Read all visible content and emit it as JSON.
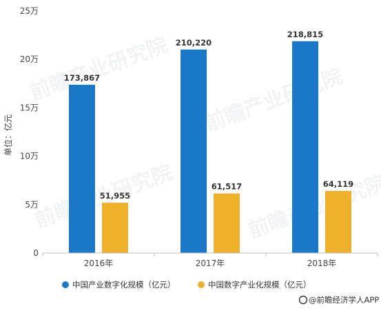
{
  "chart_data": {
    "type": "bar",
    "categories": [
      "2016年",
      "2017年",
      "2018年"
    ],
    "series": [
      {
        "name": "中国产业数字化规模（亿元）",
        "values": [
          173867,
          210220,
          218815
        ],
        "labels": [
          "173,867",
          "210,220",
          "218,815"
        ],
        "color": "#1a78c9"
      },
      {
        "name": "中国数字产业化规模（亿元）",
        "values": [
          51955,
          61517,
          64119
        ],
        "labels": [
          "51,955",
          "61,517",
          "64,119"
        ],
        "color": "#f0b12a"
      }
    ],
    "ylabel": "单位：亿元",
    "ylim": [
      0,
      250000
    ],
    "yticks": [
      0,
      50000,
      100000,
      150000,
      200000,
      250000
    ],
    "ytick_labels": [
      "0",
      "5万",
      "10万",
      "15万",
      "20万",
      "25万"
    ],
    "grid": false,
    "legend": "bottom"
  },
  "watermark": "前瞻产业研究院",
  "credit": {
    "logo": "weibo-at-icon",
    "text": "@前瞻经济学人APP"
  }
}
